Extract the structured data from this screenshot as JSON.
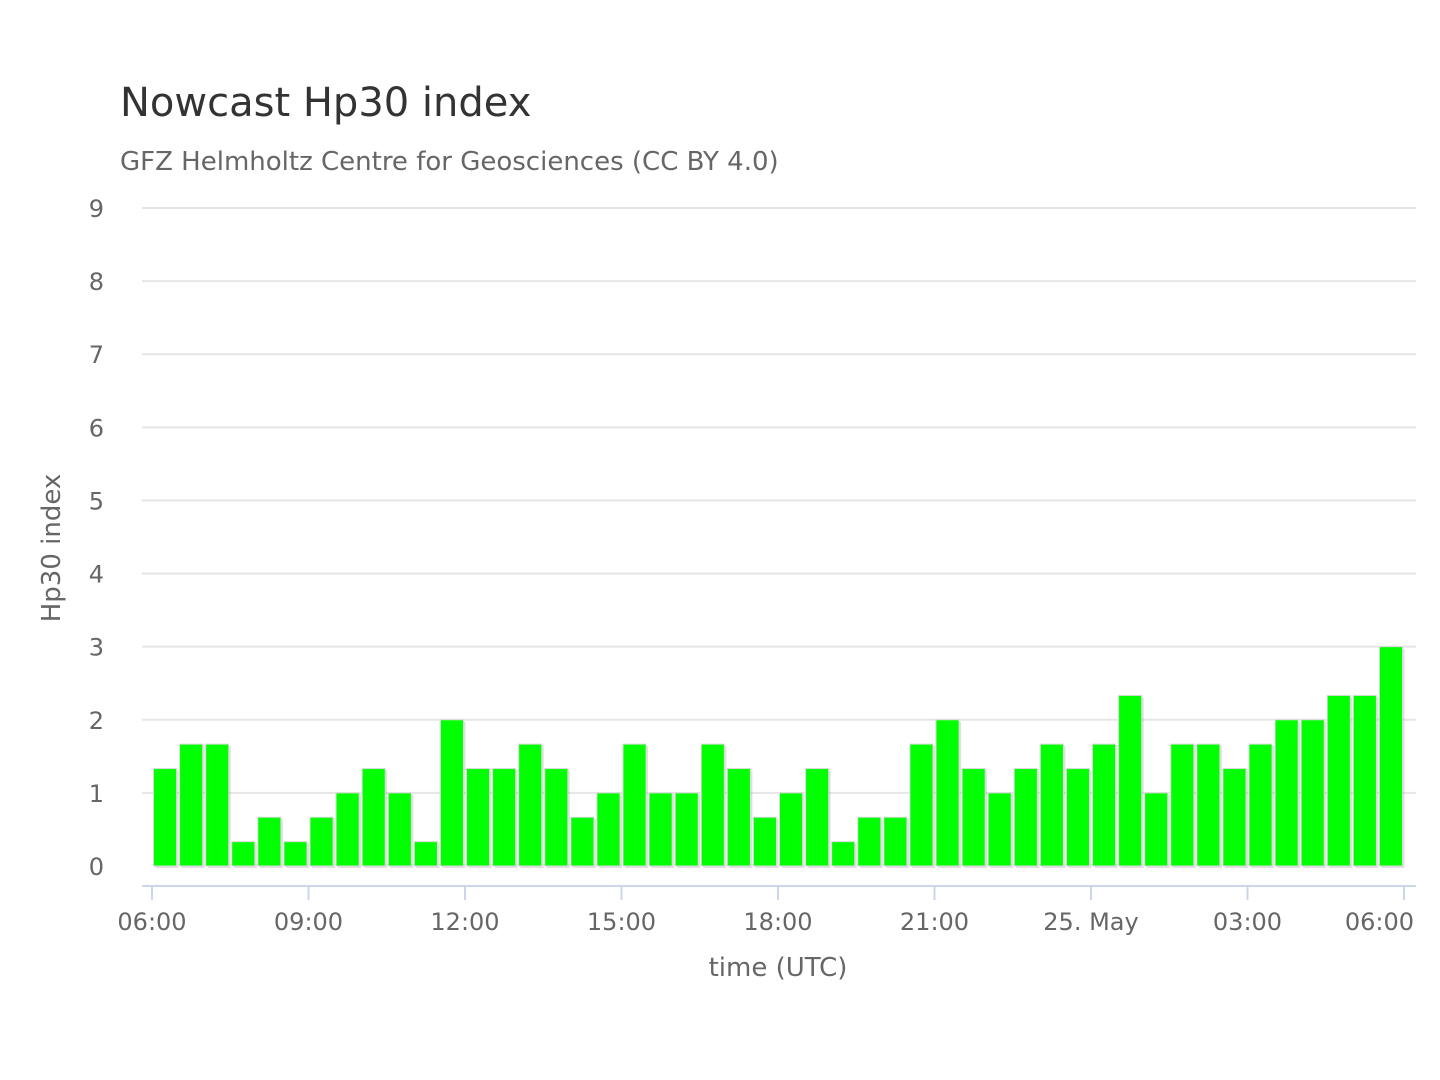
{
  "chart_data": {
    "type": "bar",
    "title": "Nowcast Hp30 index",
    "subtitle": "GFZ Helmholtz Centre for Geosciences (CC BY 4.0)",
    "xlabel": "time (UTC)",
    "ylabel": "Hp30 index",
    "ylim": [
      0,
      9
    ],
    "yticks": [
      0,
      1,
      2,
      3,
      4,
      5,
      6,
      7,
      8,
      9
    ],
    "xlim_hours": [
      6,
      30.25
    ],
    "xticks": [
      {
        "label": "06:00",
        "hour": 6
      },
      {
        "label": "09:00",
        "hour": 9
      },
      {
        "label": "12:00",
        "hour": 12
      },
      {
        "label": "15:00",
        "hour": 15
      },
      {
        "label": "18:00",
        "hour": 18
      },
      {
        "label": "21:00",
        "hour": 21
      },
      {
        "label": "25. May",
        "hour": 24
      },
      {
        "label": "03:00",
        "hour": 27
      },
      {
        "label": "06:00",
        "hour": 30
      }
    ],
    "bar_width_hours": 0.5,
    "bar_color": "#00ff00",
    "values": [
      1.333,
      1.667,
      1.667,
      0.333,
      0.667,
      0.333,
      0.667,
      1.0,
      1.333,
      1.0,
      0.333,
      2.0,
      1.333,
      1.333,
      1.667,
      1.333,
      0.667,
      1.0,
      1.667,
      1.0,
      1.0,
      1.667,
      1.333,
      0.667,
      1.0,
      1.333,
      0.333,
      0.667,
      0.667,
      1.667,
      2.0,
      1.333,
      1.0,
      1.333,
      1.667,
      1.333,
      1.667,
      2.333,
      1.0,
      1.667,
      1.667,
      1.333,
      1.667,
      2.0,
      2.0,
      2.333,
      2.333,
      3.0
    ],
    "grid": true,
    "legend": "none"
  }
}
